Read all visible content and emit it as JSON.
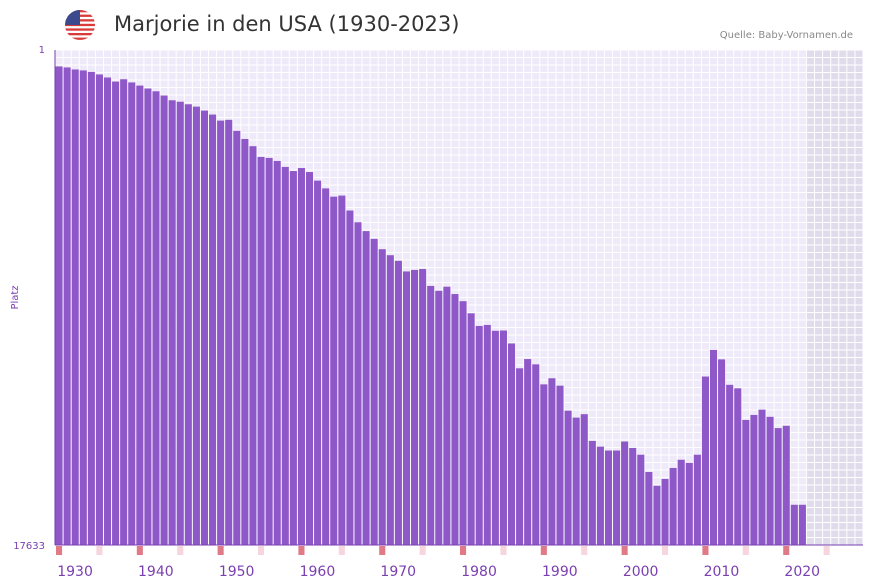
{
  "header": {
    "title": "Marjorie in den USA (1930-2023)",
    "source": "Quelle: Baby-Vornamen.de",
    "flag_icon": "us-flag-icon"
  },
  "chart_data": {
    "type": "bar",
    "title": "Marjorie in den USA (1930-2023)",
    "xlabel": "",
    "ylabel": "Platz",
    "y_axis_inverted": true,
    "ylim": [
      1,
      17633
    ],
    "ytick_labels": [
      "1",
      "17633"
    ],
    "xlim": [
      1930,
      2029
    ],
    "xtick_labels": [
      "1930",
      "1940",
      "1950",
      "1960",
      "1970",
      "1980",
      "1990",
      "2000",
      "2010",
      "2020"
    ],
    "grid": true,
    "legend": "none",
    "bar_color": "#8e58c8",
    "shaded_future_from": 2023,
    "x": [
      1930,
      1931,
      1932,
      1933,
      1934,
      1935,
      1936,
      1937,
      1938,
      1939,
      1940,
      1941,
      1942,
      1943,
      1944,
      1945,
      1946,
      1947,
      1948,
      1949,
      1950,
      1951,
      1952,
      1953,
      1954,
      1955,
      1956,
      1957,
      1958,
      1959,
      1960,
      1961,
      1962,
      1963,
      1964,
      1965,
      1966,
      1967,
      1968,
      1969,
      1970,
      1971,
      1972,
      1973,
      1974,
      1975,
      1976,
      1977,
      1978,
      1979,
      1980,
      1981,
      1982,
      1983,
      1984,
      1985,
      1986,
      1987,
      1988,
      1989,
      1990,
      1991,
      1992,
      1993,
      1994,
      1995,
      1996,
      1997,
      1998,
      1999,
      2000,
      2001,
      2002,
      2003,
      2004,
      2005,
      2006,
      2007,
      2008,
      2009,
      2010,
      2011,
      2012,
      2013,
      2014,
      2015,
      2016,
      2017,
      2018,
      2019,
      2020,
      2021,
      2022
    ],
    "values": [
      586,
      622,
      694,
      729,
      783,
      872,
      980,
      1125,
      1043,
      1157,
      1268,
      1373,
      1472,
      1621,
      1792,
      1843,
      1934,
      2018,
      2157,
      2300,
      2516,
      2488,
      2882,
      3170,
      3427,
      3810,
      3845,
      3953,
      4165,
      4312,
      4205,
      4348,
      4654,
      4930,
      5225,
      5186,
      5719,
      6137,
      6452,
      6728,
      7097,
      7310,
      7508,
      7889,
      7836,
      7803,
      8405,
      8576,
      8432,
      8694,
      8948,
      9380,
      9831,
      9794,
      10003,
      9993,
      10454,
      11339,
      11009,
      11199,
      11911,
      11694,
      11957,
      12847,
      13093,
      12973,
      13924,
      14130,
      14268,
      14268,
      13946,
      14176,
      14417,
      15032,
      15520,
      15279,
      14889,
      14596,
      14706,
      14417,
      11632,
      10685,
      11021,
      11927,
      12052,
      13179,
      13000,
      12813,
      13067,
      13469,
      13385,
      16200,
      16200
    ],
    "future_values": [
      17633,
      17633,
      17633,
      17633,
      17633,
      17633,
      17633
    ]
  }
}
